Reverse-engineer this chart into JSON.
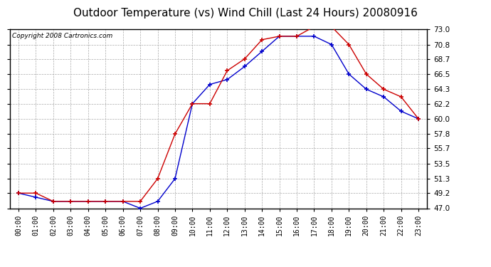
{
  "title": "Outdoor Temperature (vs) Wind Chill (Last 24 Hours) 20080916",
  "copyright": "Copyright 2008 Cartronics.com",
  "hours": [
    "00:00",
    "01:00",
    "02:00",
    "03:00",
    "04:00",
    "05:00",
    "06:00",
    "07:00",
    "08:00",
    "09:00",
    "10:00",
    "11:00",
    "12:00",
    "13:00",
    "14:00",
    "15:00",
    "16:00",
    "17:00",
    "18:00",
    "19:00",
    "20:00",
    "21:00",
    "22:00",
    "23:00"
  ],
  "outdoor_temp": [
    49.2,
    49.2,
    48.0,
    48.0,
    48.0,
    48.0,
    48.0,
    48.0,
    51.3,
    57.8,
    62.2,
    62.2,
    67.0,
    68.7,
    71.5,
    72.0,
    72.0,
    73.4,
    73.4,
    70.8,
    66.5,
    64.3,
    63.2,
    60.0
  ],
  "wind_chill": [
    49.2,
    48.6,
    48.0,
    48.0,
    48.0,
    48.0,
    48.0,
    47.0,
    48.0,
    51.3,
    62.2,
    65.0,
    65.7,
    67.6,
    69.8,
    72.0,
    72.0,
    72.0,
    70.8,
    66.5,
    64.3,
    63.2,
    61.1,
    60.0
  ],
  "ylim": [
    47.0,
    73.0
  ],
  "yticks": [
    47.0,
    49.2,
    51.3,
    53.5,
    55.7,
    57.8,
    60.0,
    62.2,
    64.3,
    66.5,
    68.7,
    70.8,
    73.0
  ],
  "temp_color": "#cc0000",
  "wind_color": "#0000cc",
  "bg_color": "#ffffff",
  "plot_bg": "#ffffff",
  "grid_color": "#aaaaaa",
  "title_fontsize": 11,
  "copyright_fontsize": 6.5
}
